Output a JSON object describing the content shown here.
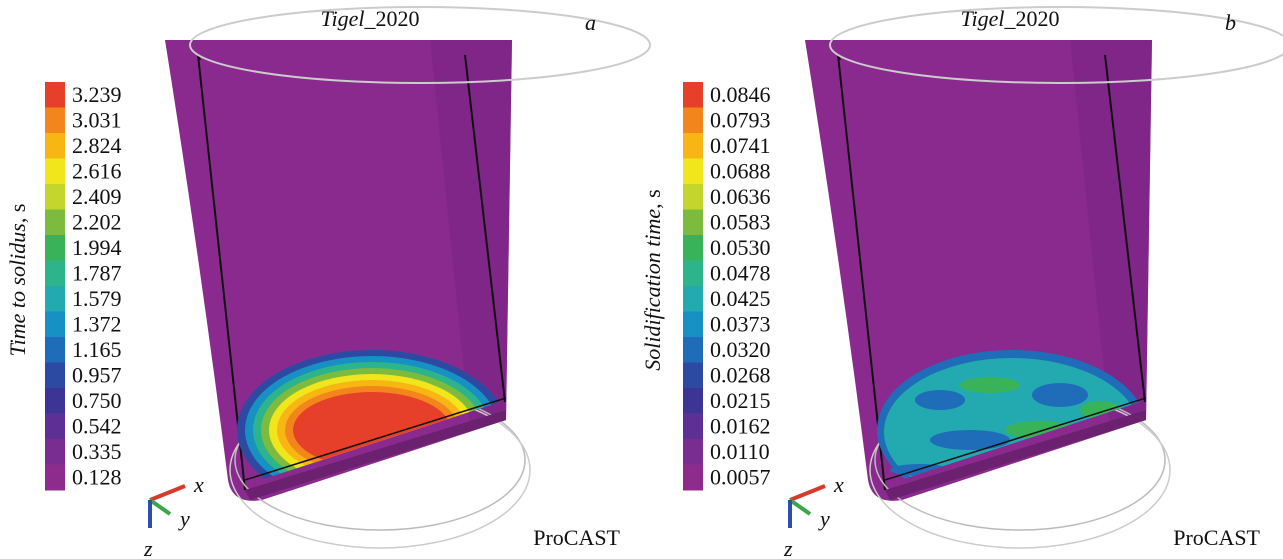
{
  "panels": [
    {
      "title": {
        "italic": "Tigel",
        "plain": "_2020"
      },
      "letter": "a",
      "colorbar_label": {
        "italic": "Time to solidus",
        "plain": ", s"
      },
      "colorbar_ticks": [
        "3.239",
        "3.031",
        "2.824",
        "2.616",
        "2.409",
        "2.202",
        "1.994",
        "1.787",
        "1.579",
        "1.372",
        "1.165",
        "0.957",
        "0.750",
        "0.542",
        "0.335",
        "0.128"
      ],
      "software": "ProCAST",
      "axes": [
        "x",
        "y",
        "z"
      ]
    },
    {
      "title": {
        "italic": "Tigel",
        "plain": "_2020"
      },
      "letter": "b",
      "colorbar_label": {
        "italic": "Solidification time",
        "plain": ", s"
      },
      "colorbar_ticks": [
        "0.0846",
        "0.0793",
        "0.0741",
        "0.0688",
        "0.0636",
        "0.0583",
        "0.0530",
        "0.0478",
        "0.0425",
        "0.0373",
        "0.0320",
        "0.0268",
        "0.0215",
        "0.0162",
        "0.0110",
        "0.0057"
      ],
      "software": "ProCAST",
      "axes": [
        "x",
        "y",
        "z"
      ]
    }
  ]
}
